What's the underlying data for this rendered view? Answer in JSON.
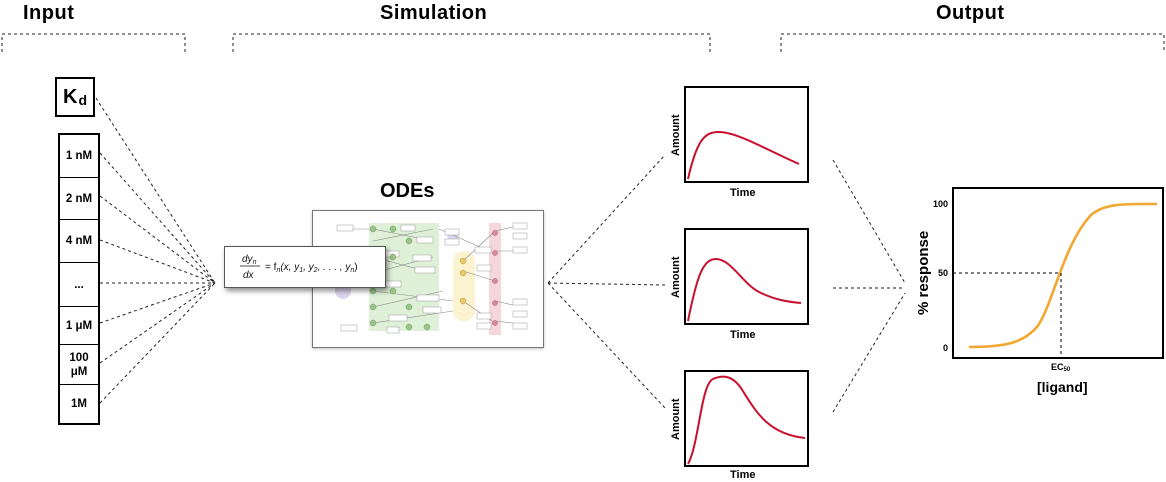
{
  "sections": {
    "input": "Input",
    "simulation": "Simulation",
    "output": "Output"
  },
  "input": {
    "kd_main": "K",
    "kd_sub": "d",
    "concentrations": [
      "1 nM",
      "2 nM",
      "4 nM",
      "...",
      "1 μM",
      "100\nμM",
      "1M"
    ]
  },
  "simulation": {
    "odes_title": "ODEs",
    "equation": {
      "lhs_num": "dy",
      "lhs_num_sub": "n",
      "lhs_den": "dx",
      "rhs": "= f",
      "rhs_sub": "n",
      "rhs_args": "(x, y",
      "args_1": "1",
      "args_sep": ", y",
      "args_2": "2",
      "args_tail": ", . . . , y",
      "args_n": "n",
      "close": ")"
    }
  },
  "plots": [
    {
      "ylabel": "Amount",
      "xlabel": "Time"
    },
    {
      "ylabel": "Amount",
      "xlabel": "Time"
    },
    {
      "ylabel": "Amount",
      "xlabel": "Time"
    }
  ],
  "dose_response": {
    "ylabel": "% response",
    "xlabel": "[ligand]",
    "ec50_label": "EC",
    "ec50_sub": "50",
    "yticks": [
      "100",
      "50",
      "0"
    ]
  },
  "colors": {
    "time_course_curve": "#c8102e",
    "dose_curve": "#f0a830",
    "network_green": "#dff0d8",
    "network_pink": "#f4d6dc",
    "network_purple": "#dcd6ee",
    "network_yellow": "#fbf3cf"
  }
}
